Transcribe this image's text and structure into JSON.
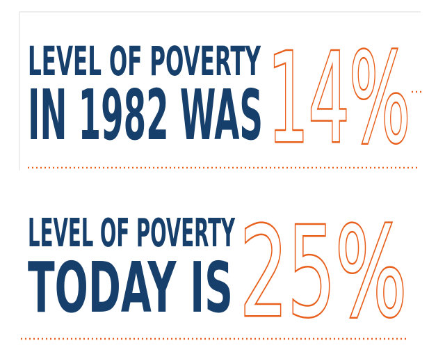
{
  "panels": [
    {
      "line1": "LEVEL OF POVERTY",
      "line2": "IN 1982 WAS",
      "figure": "14%"
    },
    {
      "line1": "LEVEL OF POVERTY",
      "line2": "TODAY IS",
      "figure": "25%"
    }
  ]
}
